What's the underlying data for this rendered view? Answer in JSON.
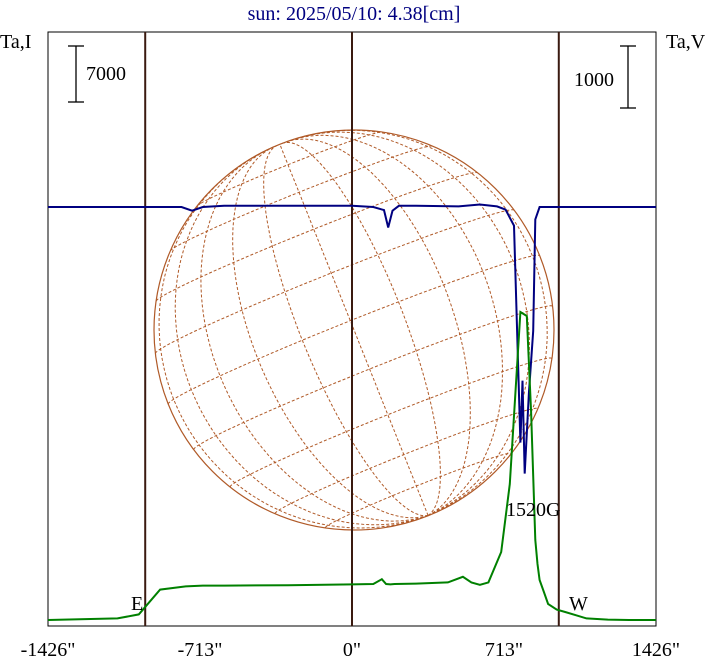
{
  "title": "sun: 2025/05/10: 4.38[cm]",
  "left_axis_label": "Ta,I",
  "right_axis_label": "Ta,V",
  "scale_bar_left": "7000",
  "scale_bar_right": "1000",
  "annotation": "1520G",
  "east_label": "E",
  "west_label": "W",
  "colors": {
    "intensity": "#008000",
    "polarization": "#000080",
    "disk": "#b05a28",
    "vertical_lines": "#3a1a10",
    "title": "#000080"
  },
  "chart_data": {
    "type": "line",
    "title": "sun: 2025/05/10: 4.38[cm]",
    "xlabel": "",
    "x_ticks": [
      {
        "value": -1426,
        "label": "-1426\""
      },
      {
        "value": -713,
        "label": "-713\""
      },
      {
        "value": 0,
        "label": "0\""
      },
      {
        "value": 713,
        "label": "713\""
      },
      {
        "value": 1426,
        "label": "1426\""
      }
    ],
    "xlim": [
      -1426,
      1426
    ],
    "reference_lines_x": [
      -970,
      0,
      970
    ],
    "left_axis": {
      "label": "Ta,I",
      "scale_bar": 7000
    },
    "right_axis": {
      "label": "Ta,V",
      "scale_bar": 1000
    },
    "series": [
      {
        "axis": "left",
        "color": "#008000",
        "x": [
          -1426,
          -1100,
          -1000,
          -900,
          -780,
          -700,
          -600,
          -300,
          0,
          100,
          140,
          160,
          180,
          200,
          300,
          450,
          520,
          560,
          600,
          640,
          700,
          740,
          790,
          820,
          840,
          850,
          860,
          870,
          880,
          900,
          920,
          960,
          1000,
          1050,
          1100,
          1200,
          1300,
          1426
        ],
        "y": [
          0,
          200,
          700,
          3800,
          4200,
          4300,
          4300,
          4350,
          4450,
          4500,
          5100,
          4500,
          4450,
          4500,
          4550,
          4700,
          5400,
          4700,
          4400,
          4700,
          8500,
          17000,
          38500,
          38000,
          26000,
          18000,
          10000,
          7000,
          5000,
          3500,
          2000,
          1300,
          1000,
          600,
          200,
          50,
          0,
          0
        ]
      },
      {
        "axis": "right",
        "color": "#000080",
        "x": [
          -1426,
          -1200,
          -1000,
          -800,
          -750,
          -700,
          -600,
          -300,
          0,
          100,
          150,
          170,
          190,
          220,
          300,
          500,
          600,
          680,
          720,
          760,
          790,
          800,
          810,
          830,
          850,
          860,
          880,
          900,
          1000,
          1200,
          1426
        ],
        "y": [
          0,
          0,
          0,
          0,
          -60,
          0,
          20,
          20,
          20,
          0,
          -50,
          -330,
          -60,
          20,
          20,
          10,
          40,
          10,
          -40,
          -300,
          -3800,
          -2800,
          -4300,
          -3000,
          -2000,
          -200,
          0,
          0,
          0,
          0,
          0
        ]
      }
    ],
    "grid": false,
    "legend": "none"
  }
}
